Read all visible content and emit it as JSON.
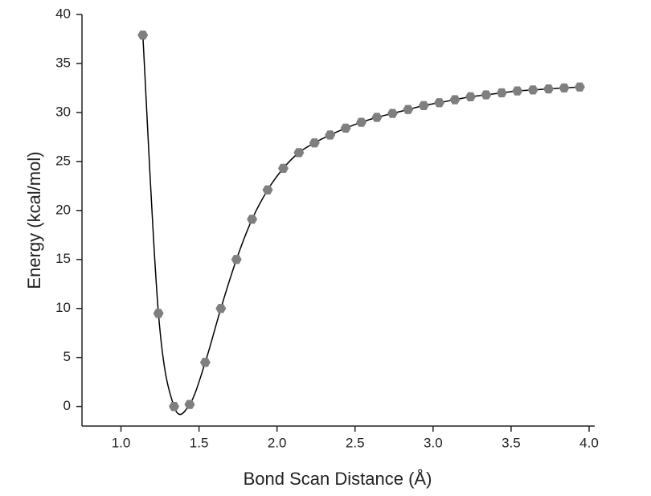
{
  "chart_data": {
    "type": "line",
    "x_label": "Bond Scan Distance (Å)",
    "y_label": "Energy (kcal/mol)",
    "x": [
      1.14,
      1.24,
      1.34,
      1.44,
      1.54,
      1.64,
      1.74,
      1.84,
      1.94,
      2.04,
      2.14,
      2.24,
      2.34,
      2.44,
      2.54,
      2.64,
      2.74,
      2.84,
      2.94,
      3.04,
      3.14,
      3.24,
      3.34,
      3.44,
      3.54,
      3.64,
      3.74,
      3.84,
      3.94
    ],
    "series": [
      {
        "name": "Energy",
        "color": "#7f7f7f",
        "values": [
          37.9,
          9.5,
          0,
          0.2,
          4.5,
          10.0,
          15.0,
          19.1,
          22.1,
          24.3,
          25.9,
          26.9,
          27.7,
          28.4,
          29.0,
          29.5,
          29.9,
          30.3,
          30.7,
          31.0,
          31.3,
          31.6,
          31.8,
          32.0,
          32.2,
          32.3,
          32.4,
          32.5,
          32.6
        ]
      }
    ],
    "line_color": "#000000",
    "xlim": [
      0.75,
      4.0
    ],
    "ylim": [
      -2,
      40
    ],
    "xticks": [
      {
        "value": 1,
        "label": "1.0"
      },
      1.5,
      {
        "value": 2,
        "label": "2.0"
      },
      2.5,
      {
        "value": 3,
        "label": "3.0"
      },
      3.5,
      {
        "value": 4,
        "label": "4.0"
      }
    ],
    "yticks": [
      0,
      5,
      10,
      15,
      20,
      25,
      30,
      35,
      40
    ]
  }
}
